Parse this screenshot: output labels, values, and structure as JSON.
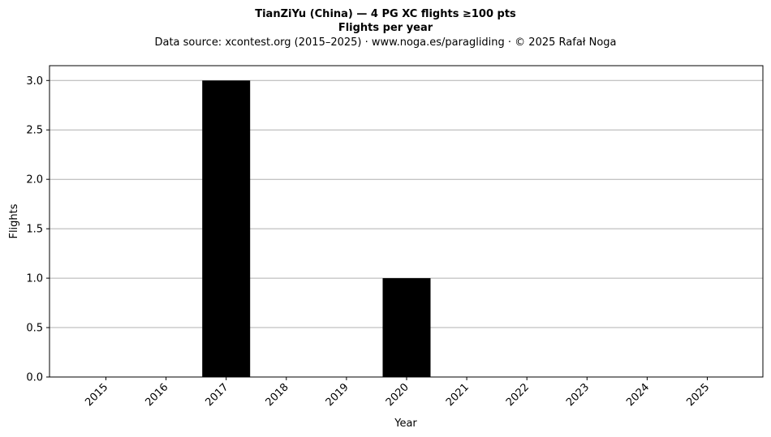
{
  "chart_data": {
    "type": "bar",
    "title": "TianZiYu (China)  —  4 PG XC flights ≥100 pts",
    "title_line2": "Flights per year",
    "subtitle": "Data source: xcontest.org (2015–2025)  ·  www.noga.es/paragliding  ·  © 2025 Rafał Noga",
    "xlabel": "Year",
    "ylabel": "Flights",
    "categories": [
      "2015",
      "2016",
      "2017",
      "2018",
      "2019",
      "2020",
      "2021",
      "2022",
      "2023",
      "2024",
      "2025"
    ],
    "values": [
      0,
      0,
      3,
      0,
      0,
      1,
      0,
      0,
      0,
      0,
      0
    ],
    "yticks": [
      "0.0",
      "0.5",
      "1.0",
      "1.5",
      "2.0",
      "2.5",
      "3.0"
    ],
    "ylim": [
      0,
      3.15
    ],
    "grid": "y",
    "bar_color": "#000000",
    "grid_color": "#b0b0b0"
  }
}
